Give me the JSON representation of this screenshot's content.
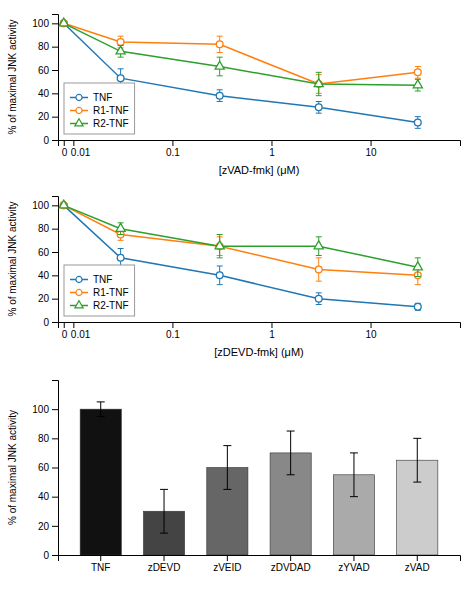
{
  "chart_data": [
    {
      "type": "line",
      "x_label": "[zVAD-fmk] (μM)",
      "y_label": "% of maximal JNK activity",
      "log": "x",
      "x": [
        0.008,
        0.03,
        0.3,
        3,
        30
      ],
      "series": [
        {
          "name": "TNF",
          "marker": "circle",
          "values": [
            100,
            53,
            38,
            28,
            15
          ],
          "errors": [
            null,
            8,
            5,
            5,
            5
          ]
        },
        {
          "name": "R1-TNF",
          "marker": "circle",
          "values": [
            100,
            84,
            82,
            48,
            58
          ],
          "errors": [
            null,
            5,
            7,
            8,
            5
          ]
        },
        {
          "name": "R2-TNF",
          "marker": "triangle",
          "values": [
            100,
            76,
            63,
            48,
            47
          ],
          "errors": [
            null,
            5,
            8,
            10,
            5
          ]
        }
      ],
      "xlim": [
        0.007,
        80
      ],
      "xticks": [
        {
          "value": 0.008,
          "label": "0"
        },
        0.01,
        0.1,
        1,
        10
      ],
      "ylim": [
        0,
        108
      ],
      "yticks": [
        0,
        20,
        40,
        60,
        80,
        100
      ],
      "legend": "lower left"
    },
    {
      "type": "line",
      "x_label": "[zDEVD-fmk] (μM)",
      "y_label": "% of maximal JNK activity",
      "log": "x",
      "x": [
        0.008,
        0.03,
        0.3,
        3,
        30
      ],
      "series": [
        {
          "name": "TNF",
          "marker": "circle",
          "values": [
            100,
            55,
            40,
            20,
            13
          ],
          "errors": [
            null,
            8,
            8,
            5,
            3
          ]
        },
        {
          "name": "R1-TNF",
          "marker": "circle",
          "values": [
            100,
            75,
            65,
            45,
            40
          ],
          "errors": [
            null,
            5,
            8,
            10,
            8
          ]
        },
        {
          "name": "R2-TNF",
          "marker": "triangle",
          "values": [
            100,
            80,
            65,
            65,
            47
          ],
          "errors": [
            null,
            5,
            10,
            8,
            8
          ]
        }
      ],
      "xlim": [
        0.007,
        80
      ],
      "xticks": [
        {
          "value": 0.008,
          "label": "0"
        },
        0.01,
        0.1,
        1,
        10
      ],
      "ylim": [
        0,
        108
      ],
      "yticks": [
        0,
        20,
        40,
        60,
        80,
        100
      ],
      "legend": "lower left"
    },
    {
      "type": "bar",
      "y_label": "% of maximal JNK activity",
      "categories": [
        "TNF",
        "zDEVD",
        "zVEID",
        "zDVDAD",
        "zYVAD",
        "zVAD"
      ],
      "values": [
        100,
        30,
        60,
        70,
        55,
        65
      ],
      "errors": [
        5,
        15,
        15,
        15,
        15,
        15
      ],
      "colors": [
        "#111111",
        "#444444",
        "#666666",
        "#888888",
        "#aaaaaa",
        "#cccccc"
      ],
      "ylim": [
        0,
        120
      ],
      "yticks": [
        0,
        20,
        40,
        60,
        80,
        100
      ]
    }
  ]
}
